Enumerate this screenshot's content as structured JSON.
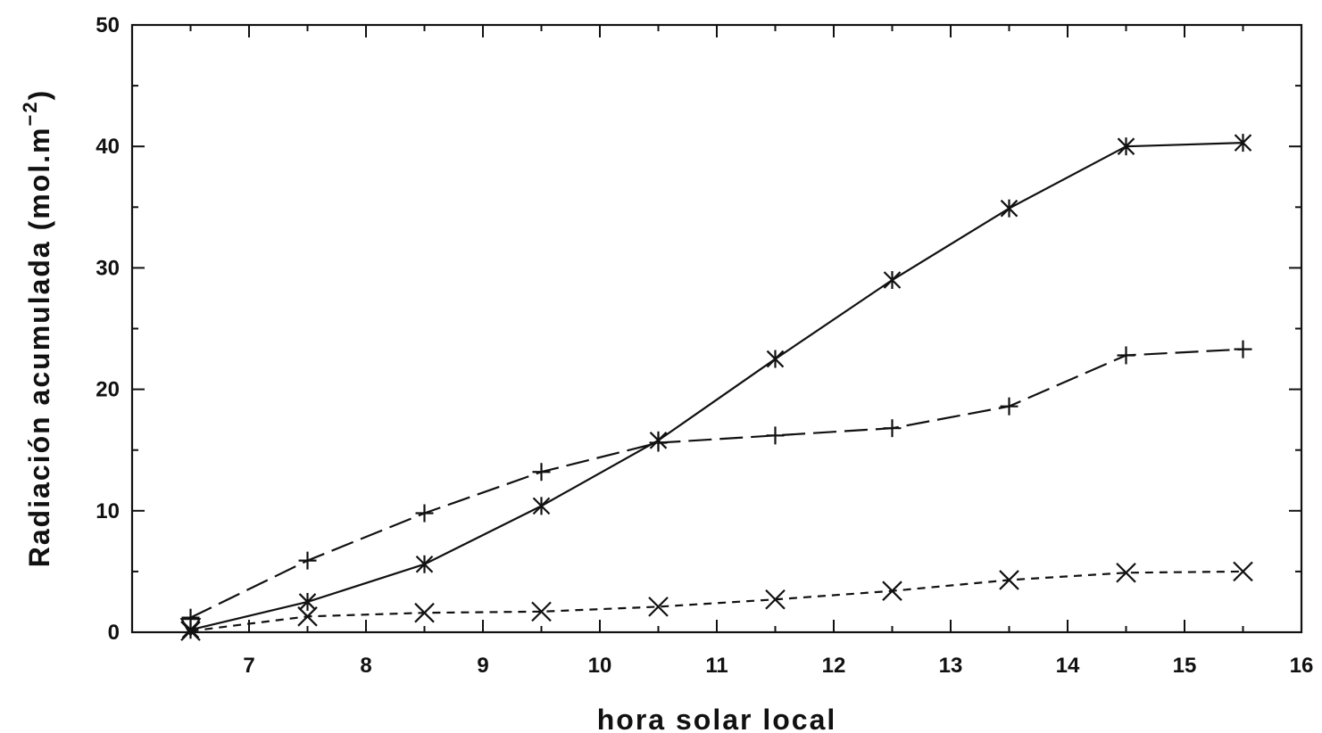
{
  "chart_data": {
    "type": "line",
    "xlabel": "hora solar local",
    "ylabel": {
      "main": "Radiación acumulada (mol.m",
      "sup": "−2",
      "close": ")"
    },
    "xlim": [
      6,
      16
    ],
    "ylim": [
      0,
      50
    ],
    "xticks": [
      7,
      8,
      9,
      10,
      11,
      12,
      13,
      14,
      15,
      16
    ],
    "yticks": [
      0,
      10,
      20,
      30,
      40,
      50
    ],
    "x_minor_step": 0.5,
    "y_minor_step": 5,
    "grid": false,
    "x": [
      6.5,
      7.5,
      8.5,
      9.5,
      10.5,
      11.5,
      12.5,
      13.5,
      14.5,
      15.5
    ],
    "series": [
      {
        "marker": "asterisk",
        "line_style": "solid",
        "values": [
          0.2,
          2.5,
          5.6,
          10.4,
          15.8,
          22.5,
          29.0,
          34.9,
          40.0,
          40.3
        ]
      },
      {
        "marker": "plus",
        "line_style": "long-dash",
        "values": [
          1.2,
          5.9,
          9.8,
          13.2,
          15.6,
          16.2,
          16.8,
          18.6,
          22.8,
          23.3
        ]
      },
      {
        "marker": "cross",
        "line_style": "short-dash",
        "values": [
          0.1,
          1.3,
          1.6,
          1.7,
          2.1,
          2.7,
          3.4,
          4.3,
          4.9,
          5.0
        ]
      },
      {
        "marker": "triangle-down",
        "line_style": "none",
        "values": [
          0.5,
          null,
          null,
          null,
          null,
          null,
          null,
          null,
          null,
          null
        ]
      }
    ]
  }
}
